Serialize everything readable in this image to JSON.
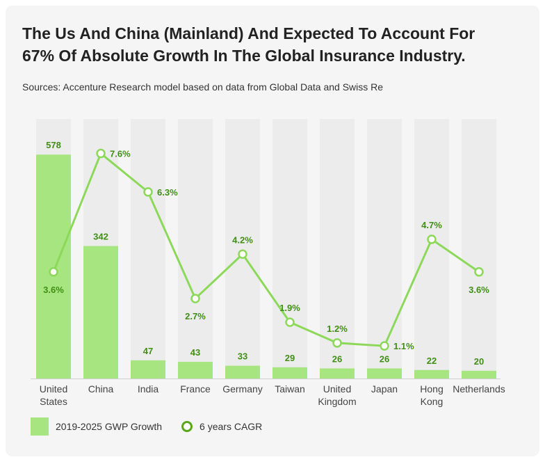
{
  "title": "The Us And China (Mainland) And Expected To Account For 67% Of Absolute Growth In The Global Insurance Industry.",
  "subtitle": "Sources: Accenture Research model based on data from Global Data and Swiss Re",
  "legend": {
    "bars_label": "2019-2025 GWP Growth",
    "line_label": "6 years CAGR"
  },
  "colors": {
    "bar": "#a6e57f",
    "track": "#ececec",
    "line": "#8cd95a",
    "marker_stroke": "#8cd95a",
    "label_green": "#3f8f14",
    "axis_text": "#444444"
  },
  "chart_data": {
    "type": "bar",
    "categories": [
      "United States",
      "China",
      "India",
      "France",
      "Germany",
      "Taiwan",
      "United Kingdom",
      "Japan",
      "Hong Kong",
      "Netherlands"
    ],
    "category_label_lines": [
      [
        "United",
        "States"
      ],
      [
        "China"
      ],
      [
        "India"
      ],
      [
        "France"
      ],
      [
        "Germany"
      ],
      [
        "Taiwan"
      ],
      [
        "United",
        "Kingdom"
      ],
      [
        "Japan"
      ],
      [
        "Hong",
        "Kong"
      ],
      [
        "Netherlands"
      ]
    ],
    "series": [
      {
        "name": "2019-2025 GWP Growth",
        "type": "bar",
        "values": [
          578,
          342,
          47,
          43,
          33,
          29,
          26,
          26,
          22,
          20
        ]
      },
      {
        "name": "6 years CAGR",
        "type": "line",
        "values": [
          3.6,
          7.6,
          6.3,
          2.7,
          4.2,
          1.9,
          1.2,
          1.1,
          4.7,
          3.6
        ],
        "labels": [
          "3.6%",
          "7.6%",
          "6.3%",
          "2.7%",
          "4.2%",
          "1.9%",
          "1.2%",
          "1.1%",
          "4.7%",
          "3.6%"
        ]
      }
    ],
    "bar_ylim": [
      0,
      670
    ],
    "line_ylim": [
      0,
      8.6
    ],
    "legend_position": "bottom-left",
    "grid": false
  }
}
